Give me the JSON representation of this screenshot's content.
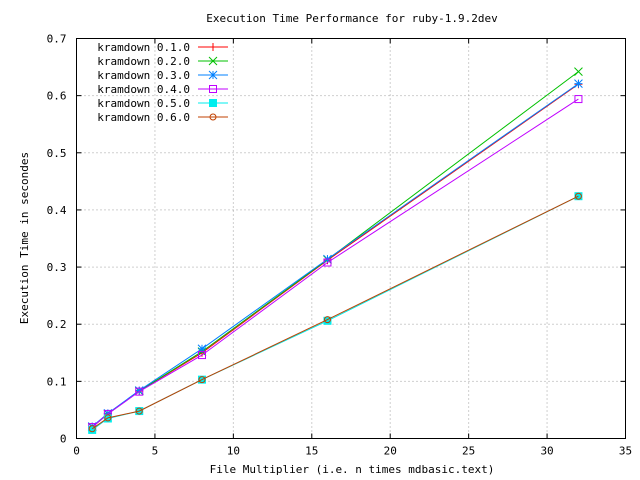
{
  "chart_data": {
    "type": "line",
    "title": "Execution Time Performance for ruby-1.9.2dev",
    "xlabel": "File Multiplier (i.e. n times mdbasic.text)",
    "ylabel": "Execution Time in secondes",
    "xlim": [
      0,
      35
    ],
    "ylim": [
      0,
      0.7
    ],
    "xticks": [
      0,
      5,
      10,
      15,
      20,
      25,
      30,
      35
    ],
    "yticks": [
      0,
      0.1,
      0.2,
      0.3,
      0.4,
      0.5,
      0.6,
      0.7
    ],
    "xtick_labels": [
      "0",
      "5",
      "10",
      "15",
      "20",
      "25",
      "30",
      "35"
    ],
    "ytick_labels": [
      "0",
      "0.1",
      "0.2",
      "0.3",
      "0.4",
      "0.5",
      "0.6",
      "0.7"
    ],
    "grid": true,
    "legend_position": "top-left",
    "x": [
      1,
      2,
      4,
      8,
      16,
      32
    ],
    "series": [
      {
        "name": "kramdown 0.1.0",
        "color": "#ff0000",
        "marker": "plus",
        "values": [
          0.02,
          0.043,
          0.083,
          0.15,
          0.312,
          0.62
        ]
      },
      {
        "name": "kramdown 0.2.0",
        "color": "#00c000",
        "marker": "cross",
        "values": [
          0.02,
          0.043,
          0.083,
          0.152,
          0.313,
          0.642
        ]
      },
      {
        "name": "kramdown 0.3.0",
        "color": "#0080ff",
        "marker": "star",
        "values": [
          0.021,
          0.044,
          0.084,
          0.157,
          0.314,
          0.621
        ]
      },
      {
        "name": "kramdown 0.4.0",
        "color": "#c000ff",
        "marker": "square",
        "values": [
          0.02,
          0.043,
          0.082,
          0.146,
          0.308,
          0.594
        ]
      },
      {
        "name": "kramdown 0.5.0",
        "color": "#00eeee",
        "marker": "filled-square",
        "values": [
          0.015,
          0.035,
          0.048,
          0.103,
          0.206,
          0.424
        ]
      },
      {
        "name": "kramdown 0.6.0",
        "color": "#c04000",
        "marker": "circle",
        "values": [
          0.017,
          0.036,
          0.048,
          0.103,
          0.208,
          0.424
        ]
      }
    ]
  }
}
